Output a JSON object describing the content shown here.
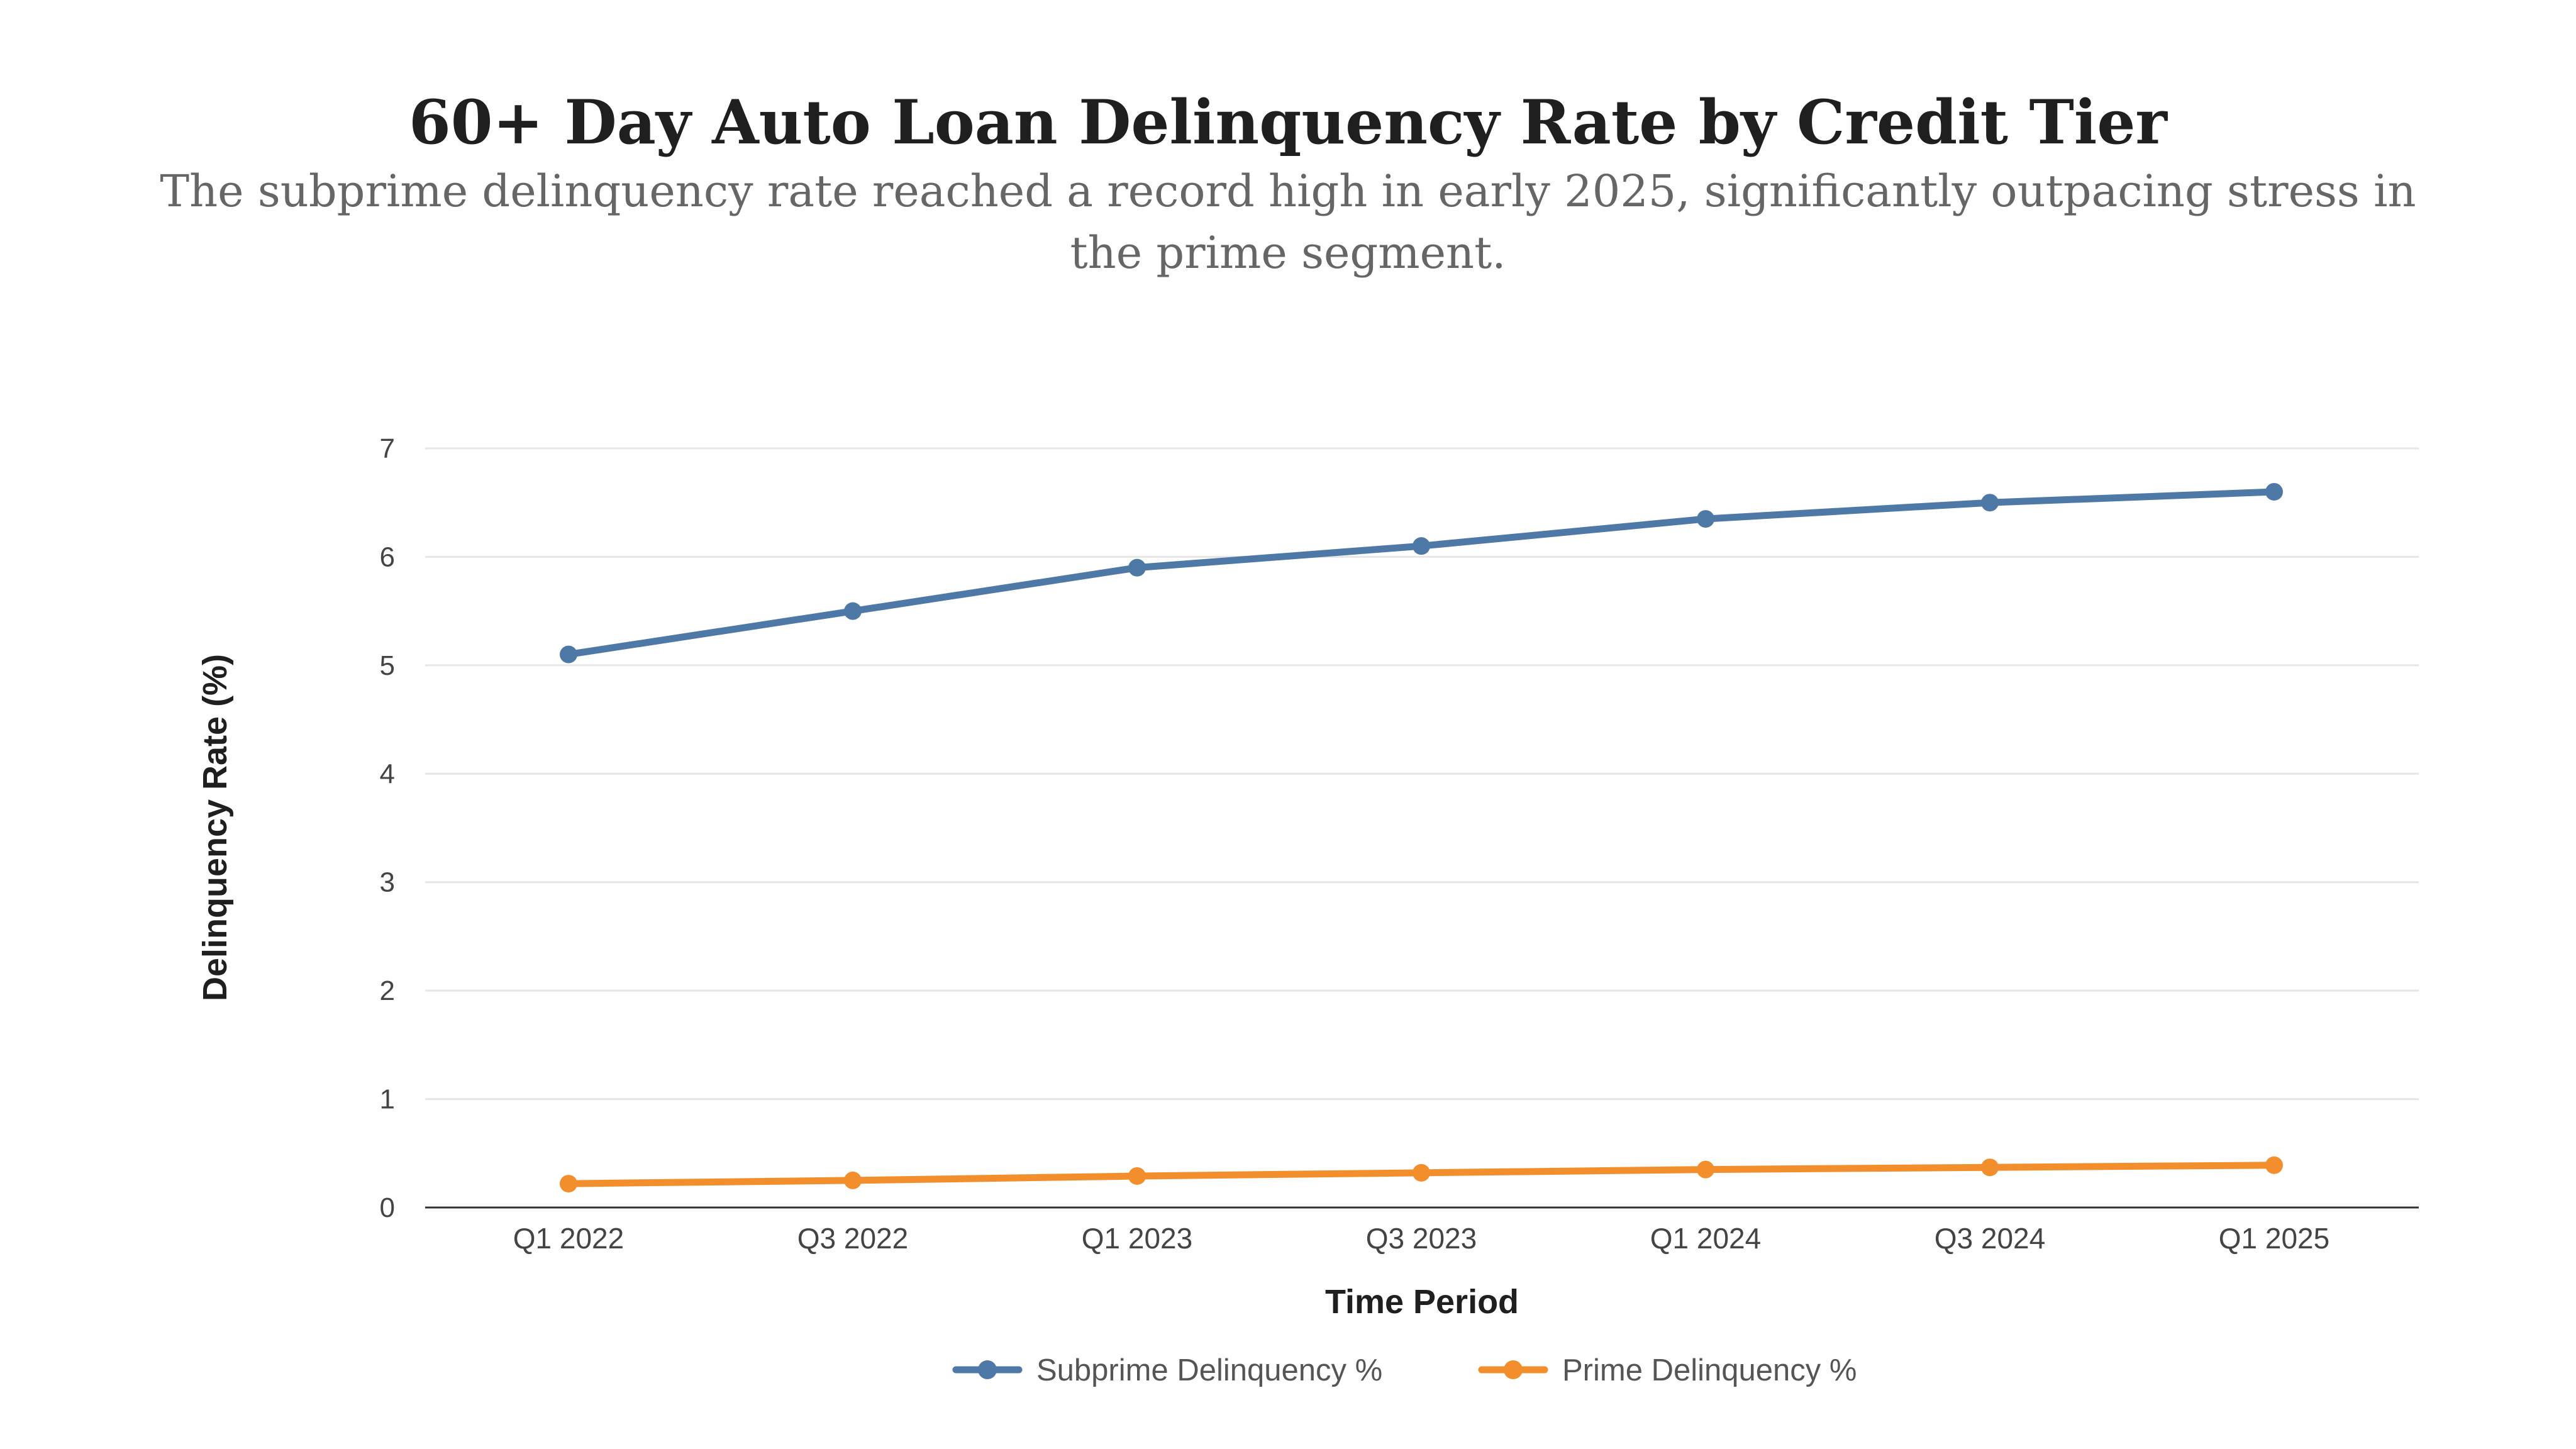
{
  "chart_data": {
    "type": "line",
    "title": "60+ Day Auto Loan Delinquency Rate by Credit Tier",
    "subtitle": "The subprime delinquency rate reached a record high in early 2025, significantly outpacing stress in the prime segment.",
    "xlabel": "Time Period",
    "ylabel": "Delinquency Rate (%)",
    "categories": [
      "Q1 2022",
      "Q3 2022",
      "Q1 2023",
      "Q3 2023",
      "Q1 2024",
      "Q3 2024",
      "Q1 2025"
    ],
    "ylim": [
      0,
      7
    ],
    "yticks": [
      "0",
      "1",
      "2",
      "3",
      "4",
      "5",
      "6",
      "7"
    ],
    "grid": true,
    "legend_position": "bottom-center",
    "series": [
      {
        "name": "Subprime Delinquency %",
        "color": "#4e79a7",
        "values": [
          5.1,
          5.5,
          5.9,
          6.1,
          6.35,
          6.5,
          6.6
        ]
      },
      {
        "name": "Prime Delinquency %",
        "color": "#f28e2b",
        "values": [
          0.22,
          0.25,
          0.29,
          0.32,
          0.35,
          0.37,
          0.39
        ]
      }
    ]
  }
}
